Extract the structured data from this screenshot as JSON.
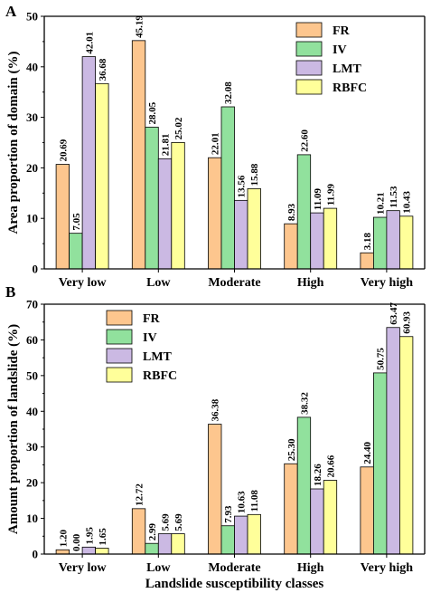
{
  "colors": {
    "FR": "#fdc68e",
    "IV": "#91e19d",
    "LMT": "#cbb9e3",
    "RBFC": "#ffff9a",
    "axis": "#000000"
  },
  "chart_data": [
    {
      "type": "bar",
      "panel_label": "A",
      "title": "",
      "xlabel": "",
      "ylabel": "Area proportion of domain (%)",
      "ylim": [
        0,
        50
      ],
      "yticks": [
        "0",
        "10",
        "20",
        "30",
        "40",
        "50"
      ],
      "categories": [
        "Very low",
        "Low",
        "Moderate",
        "High",
        "Very high"
      ],
      "series": [
        {
          "name": "FR",
          "values": [
            20.69,
            45.19,
            22.01,
            8.93,
            3.18
          ],
          "labels": [
            "20.69",
            "45.19",
            "22.01",
            "8.93",
            "3.18"
          ]
        },
        {
          "name": "IV",
          "values": [
            7.05,
            28.05,
            32.08,
            22.6,
            10.21
          ],
          "labels": [
            "7.05",
            "28.05",
            "32.08",
            "22.60",
            "10.21"
          ]
        },
        {
          "name": "LMT",
          "values": [
            42.01,
            21.81,
            13.56,
            11.09,
            11.53
          ],
          "labels": [
            "42.01",
            "21.81",
            "13.56",
            "11.09",
            "11.53"
          ]
        },
        {
          "name": "RBFC",
          "values": [
            36.68,
            25.02,
            15.88,
            11.99,
            10.43
          ],
          "labels": [
            "36.68",
            "25.02",
            "15.88",
            "11.99",
            "10.43"
          ]
        }
      ],
      "legend": "top-right",
      "grid": false
    },
    {
      "type": "bar",
      "panel_label": "B",
      "title": "",
      "xlabel": "Landslide susceptibility classes",
      "ylabel": "Amount proportion of landslide (%)",
      "ylim": [
        0,
        70
      ],
      "yticks": [
        "0",
        "10",
        "20",
        "30",
        "40",
        "50",
        "60",
        "70"
      ],
      "categories": [
        "Very low",
        "Low",
        "Moderate",
        "High",
        "Very high"
      ],
      "series": [
        {
          "name": "FR",
          "values": [
            1.2,
            12.72,
            36.38,
            25.3,
            24.4
          ],
          "labels": [
            "1.20",
            "12.72",
            "36.38",
            "25.30",
            "24.40"
          ]
        },
        {
          "name": "IV",
          "values": [
            0.0,
            2.99,
            7.93,
            38.32,
            50.75
          ],
          "labels": [
            "0.00",
            "2.99",
            "7.93",
            "38.32",
            "50.75"
          ]
        },
        {
          "name": "LMT",
          "values": [
            1.95,
            5.69,
            10.63,
            18.26,
            63.47
          ],
          "labels": [
            "1.95",
            "5.69",
            "10.63",
            "18.26",
            "63.47"
          ]
        },
        {
          "name": "RBFC",
          "values": [
            1.65,
            5.69,
            11.08,
            20.66,
            60.93
          ],
          "labels": [
            "1.65",
            "5.69",
            "11.08",
            "20.66",
            "60.93"
          ]
        }
      ],
      "legend": "top-left",
      "grid": false
    }
  ]
}
